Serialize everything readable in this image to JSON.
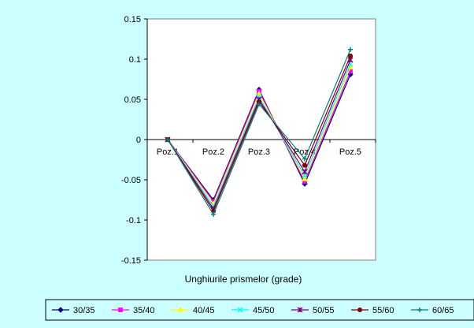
{
  "chart_data": {
    "type": "line",
    "title": "",
    "xlabel": "Unghiurile prismelor (grade)",
    "ylabel": "",
    "categories": [
      "Poz.1",
      "Poz.2",
      "Poz.3",
      "Poz.4",
      "Poz.5"
    ],
    "ylim": [
      -0.15,
      0.15
    ],
    "yticks": [
      "0.15",
      "0.1",
      "0.05",
      "0",
      "-0.05",
      "-0.1",
      "-0.15"
    ],
    "grid": false,
    "legend_position": "bottom",
    "series": [
      {
        "name": "30/35",
        "color": "#000080",
        "marker": "diamond",
        "values": [
          0,
          -0.075,
          0.062,
          -0.055,
          0.081
        ]
      },
      {
        "name": "35/40",
        "color": "#ff00ff",
        "marker": "square",
        "values": [
          0,
          -0.077,
          0.06,
          -0.052,
          0.085
        ]
      },
      {
        "name": "40/45",
        "color": "#ffff00",
        "marker": "triangle",
        "values": [
          0,
          -0.08,
          0.057,
          -0.049,
          0.09
        ]
      },
      {
        "name": "45/50",
        "color": "#00ffff",
        "marker": "x",
        "values": [
          0,
          -0.083,
          0.053,
          -0.045,
          0.094
        ]
      },
      {
        "name": "50/55",
        "color": "#800080",
        "marker": "star",
        "values": [
          0,
          -0.086,
          0.05,
          -0.04,
          0.099
        ]
      },
      {
        "name": "55/60",
        "color": "#800000",
        "marker": "circle",
        "values": [
          0,
          -0.089,
          0.047,
          -0.032,
          0.104
        ]
      },
      {
        "name": "60/65",
        "color": "#008080",
        "marker": "plus",
        "values": [
          0,
          -0.093,
          0.044,
          -0.024,
          0.112
        ]
      }
    ]
  }
}
